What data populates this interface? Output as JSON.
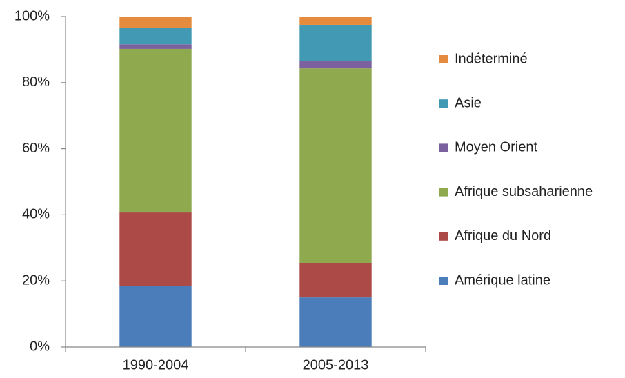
{
  "chart_data": {
    "type": "stacked_bar",
    "categories": [
      "1990-2004",
      "2005-2013"
    ],
    "series": [
      {
        "name": "Amérique latine",
        "color": "#4a7dba",
        "values": [
          18.4,
          15.0
        ]
      },
      {
        "name": "Afrique du Nord",
        "color": "#ac4a47",
        "values": [
          22.3,
          10.3
        ]
      },
      {
        "name": "Afrique subsaharienne",
        "color": "#8ea94e",
        "values": [
          49.5,
          59.0
        ]
      },
      {
        "name": "Moyen Orient",
        "color": "#7b629e",
        "values": [
          1.4,
          2.3
        ]
      },
      {
        "name": "Asie",
        "color": "#4299b3",
        "values": [
          4.9,
          10.9
        ]
      },
      {
        "name": "Indéterminé",
        "color": "#e58b3d",
        "values": [
          3.5,
          2.5
        ]
      }
    ],
    "ylim": [
      0,
      100
    ],
    "yticks": [
      {
        "value": 0,
        "label": "0%"
      },
      {
        "value": 20,
        "label": "20%"
      },
      {
        "value": 40,
        "label": "40%"
      },
      {
        "value": 60,
        "label": "60%"
      },
      {
        "value": 80,
        "label": "80%"
      },
      {
        "value": 100,
        "label": "100%"
      }
    ],
    "grid": false,
    "legend": "right"
  }
}
